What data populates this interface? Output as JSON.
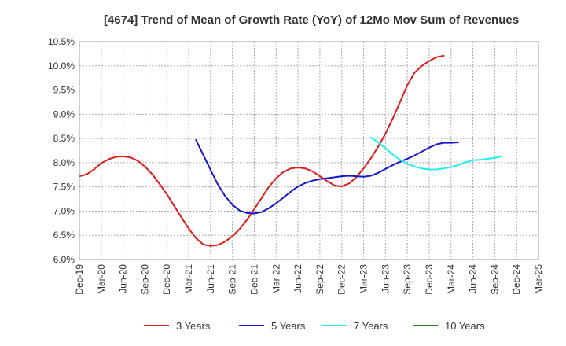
{
  "chart_data": {
    "type": "line",
    "title": "[4674]  Trend of Mean of Growth Rate (YoY) of 12Mo Mov Sum of Revenues",
    "xlabel": "",
    "ylabel": "",
    "ylim": [
      6.0,
      10.5
    ],
    "y_ticks": [
      6.0,
      6.5,
      7.0,
      7.5,
      8.0,
      8.5,
      9.0,
      9.5,
      10.0,
      10.5
    ],
    "y_tick_labels": [
      "6.0%",
      "6.5%",
      "7.0%",
      "7.5%",
      "8.0%",
      "8.5%",
      "9.0%",
      "9.5%",
      "10.0%",
      "10.5%"
    ],
    "x_tick_labels": [
      "Dec-19",
      "Mar-20",
      "Jun-20",
      "Sep-20",
      "Dec-20",
      "Mar-21",
      "Jun-21",
      "Sep-21",
      "Dec-21",
      "Mar-22",
      "Jun-22",
      "Sep-22",
      "Dec-22",
      "Mar-23",
      "Jun-23",
      "Sep-23",
      "Dec-23",
      "Mar-24",
      "Jun-24",
      "Sep-24",
      "Dec-24",
      "Mar-25"
    ],
    "grid": true,
    "legend_position": "bottom",
    "series": [
      {
        "name": "3 Years",
        "color": "#dd1c1c",
        "start_index": 0,
        "values": [
          7.72,
          7.76,
          7.86,
          7.99,
          8.07,
          8.12,
          8.13,
          8.11,
          8.04,
          7.92,
          7.76,
          7.56,
          7.35,
          7.11,
          6.87,
          6.64,
          6.44,
          6.31,
          6.28,
          6.3,
          6.37,
          6.48,
          6.63,
          6.82,
          7.04,
          7.27,
          7.5,
          7.68,
          7.81,
          7.88,
          7.9,
          7.88,
          7.82,
          7.72,
          7.62,
          7.53,
          7.51,
          7.57,
          7.7,
          7.88,
          8.09,
          8.33,
          8.6,
          8.91,
          9.25,
          9.6,
          9.86,
          10.0,
          10.1,
          10.18,
          10.21
        ]
      },
      {
        "name": "5 Years",
        "color": "#1818c8",
        "start_index": 16,
        "values": [
          8.47,
          8.16,
          7.85,
          7.55,
          7.31,
          7.13,
          7.01,
          6.96,
          6.95,
          6.98,
          7.06,
          7.16,
          7.28,
          7.4,
          7.51,
          7.58,
          7.63,
          7.66,
          7.68,
          7.7,
          7.72,
          7.73,
          7.72,
          7.71,
          7.73,
          7.79,
          7.87,
          7.95,
          8.02,
          8.08,
          8.15,
          8.23,
          8.31,
          8.38,
          8.41,
          8.41,
          8.42
        ]
      },
      {
        "name": "7 Years",
        "color": "#22eeee",
        "start_index": 40,
        "values": [
          8.52,
          8.42,
          8.3,
          8.17,
          8.06,
          7.98,
          7.92,
          7.88,
          7.86,
          7.86,
          7.88,
          7.91,
          7.95,
          8.01,
          8.05,
          8.06,
          8.08,
          8.1,
          8.13
        ]
      },
      {
        "name": "10 Years",
        "color": "#228b22",
        "start_index": 0,
        "values": []
      }
    ]
  }
}
